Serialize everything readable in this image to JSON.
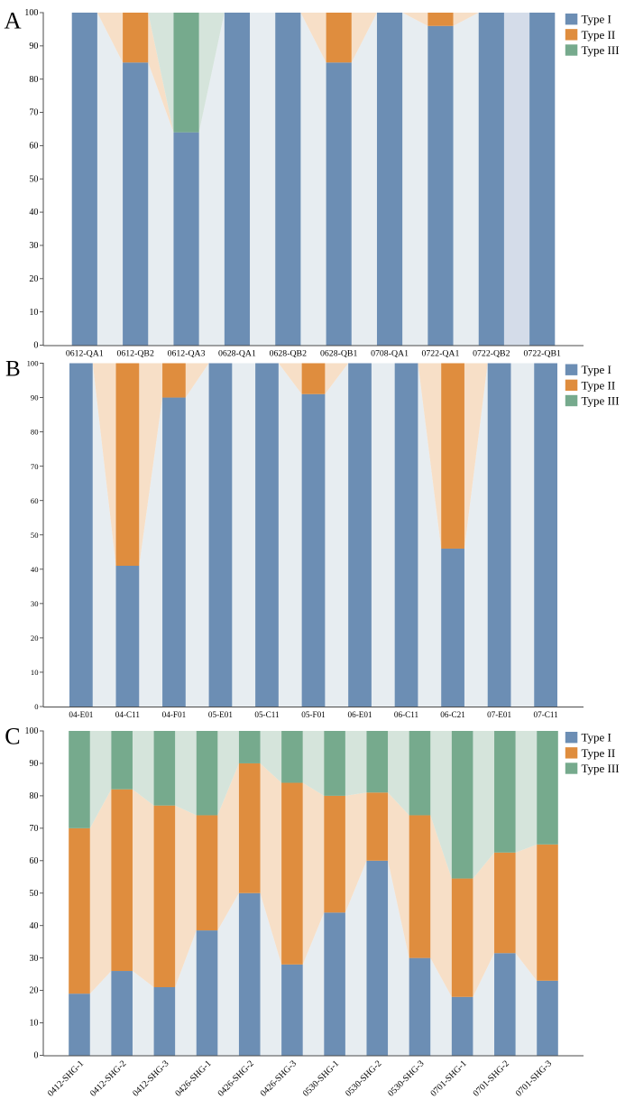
{
  "figure_title": "",
  "legend": {
    "items": [
      {
        "label": "Type I",
        "color_key": "type1"
      },
      {
        "label": "Type II",
        "color_key": "type2"
      },
      {
        "label": "Type III",
        "color_key": "type3"
      }
    ]
  },
  "colors": {
    "type1": "#6c8eb4",
    "type2": "#df8d3e",
    "type3": "#76aa8d",
    "type1_light": "#e7edf1",
    "type2_light": "#f7dfc7",
    "type3_light": "#d5e4db",
    "type1_highlight": "#d4dce9",
    "axis": "#4a4a4a",
    "text": "#000000",
    "background": "#ffffff"
  },
  "chart_data": [
    {
      "type": "bar",
      "stacked": true,
      "units": "percent",
      "panel": "A",
      "title": "",
      "xlabel": "",
      "ylabel": "",
      "ylim": [
        0,
        100
      ],
      "y_ticks": [
        0,
        10,
        20,
        30,
        40,
        50,
        60,
        70,
        80,
        90,
        100
      ],
      "grid": false,
      "legend_position": "upper right outside",
      "categories": [
        "0612-QA1",
        "0612-QB2",
        "0612-QA3",
        "0628-QA1",
        "0628-QB2",
        "0628-QB1",
        "0708-QA1",
        "0722-QA1",
        "0722-QB2",
        "0722-QB1"
      ],
      "series": [
        {
          "name": "Type I",
          "key": "type1",
          "values": [
            100,
            85,
            64,
            100,
            100,
            85,
            100,
            96,
            100,
            100
          ]
        },
        {
          "name": "Type II",
          "key": "type2",
          "values": [
            0,
            15,
            0,
            0,
            0,
            15,
            0,
            4,
            0,
            0
          ]
        },
        {
          "name": "Type III",
          "key": "type3",
          "values": [
            0,
            0,
            36,
            0,
            0,
            0,
            0,
            0,
            0,
            0
          ]
        }
      ],
      "connector_overrides": [
        {
          "gap_after_index": 8,
          "color_key": "type1_highlight"
        }
      ]
    },
    {
      "type": "bar",
      "stacked": true,
      "units": "percent",
      "panel": "B",
      "title": "",
      "xlabel": "",
      "ylabel": "",
      "ylim": [
        0,
        100
      ],
      "y_ticks": [
        0,
        10,
        20,
        30,
        40,
        50,
        60,
        70,
        80,
        90,
        100
      ],
      "grid": false,
      "legend_position": "upper right outside",
      "categories": [
        "04-E01",
        "04-C11",
        "04-F01",
        "05-E01",
        "05-C11",
        "05-F01",
        "06-E01",
        "06-C11",
        "06-C21",
        "07-E01",
        "07-C11"
      ],
      "series": [
        {
          "name": "Type I",
          "key": "type1",
          "values": [
            100,
            41,
            90,
            100,
            100,
            91,
            100,
            100,
            46,
            100,
            100
          ]
        },
        {
          "name": "Type II",
          "key": "type2",
          "values": [
            0,
            59,
            10,
            0,
            0,
            9,
            0,
            0,
            54,
            0,
            0
          ]
        },
        {
          "name": "Type III",
          "key": "type3",
          "values": [
            0,
            0,
            0,
            0,
            0,
            0,
            0,
            0,
            0,
            0,
            0
          ]
        }
      ],
      "connector_overrides": []
    },
    {
      "type": "bar",
      "stacked": true,
      "units": "percent",
      "panel": "C",
      "title": "",
      "xlabel": "",
      "ylabel": "",
      "ylim": [
        0,
        100
      ],
      "y_ticks": [
        0,
        10,
        20,
        30,
        40,
        50,
        60,
        70,
        80,
        90,
        100
      ],
      "grid": false,
      "legend_position": "upper right outside",
      "categories": [
        "0412-SHG-1",
        "0412-SHG-2",
        "0412-SHG-3",
        "0426-SHG-1",
        "0426-SHG-2",
        "0426-SHG-3",
        "0530-SHG-1",
        "0530-SHG-2",
        "0530-SHG-3",
        "0701-SHG-1",
        "0701-SHG-2",
        "0701-SHG-3"
      ],
      "series": [
        {
          "name": "Type I",
          "key": "type1",
          "values": [
            19,
            26,
            21,
            38.5,
            50,
            28,
            44,
            60,
            30,
            18,
            31.5,
            23
          ]
        },
        {
          "name": "Type II",
          "key": "type2",
          "values": [
            51,
            56,
            56,
            35.5,
            40,
            56,
            36,
            21,
            44,
            36.5,
            31,
            42
          ]
        },
        {
          "name": "Type III",
          "key": "type3",
          "values": [
            30,
            18,
            23,
            26,
            10,
            16,
            20,
            19,
            26,
            45.5,
            37.5,
            35
          ]
        }
      ],
      "connector_overrides": []
    }
  ]
}
